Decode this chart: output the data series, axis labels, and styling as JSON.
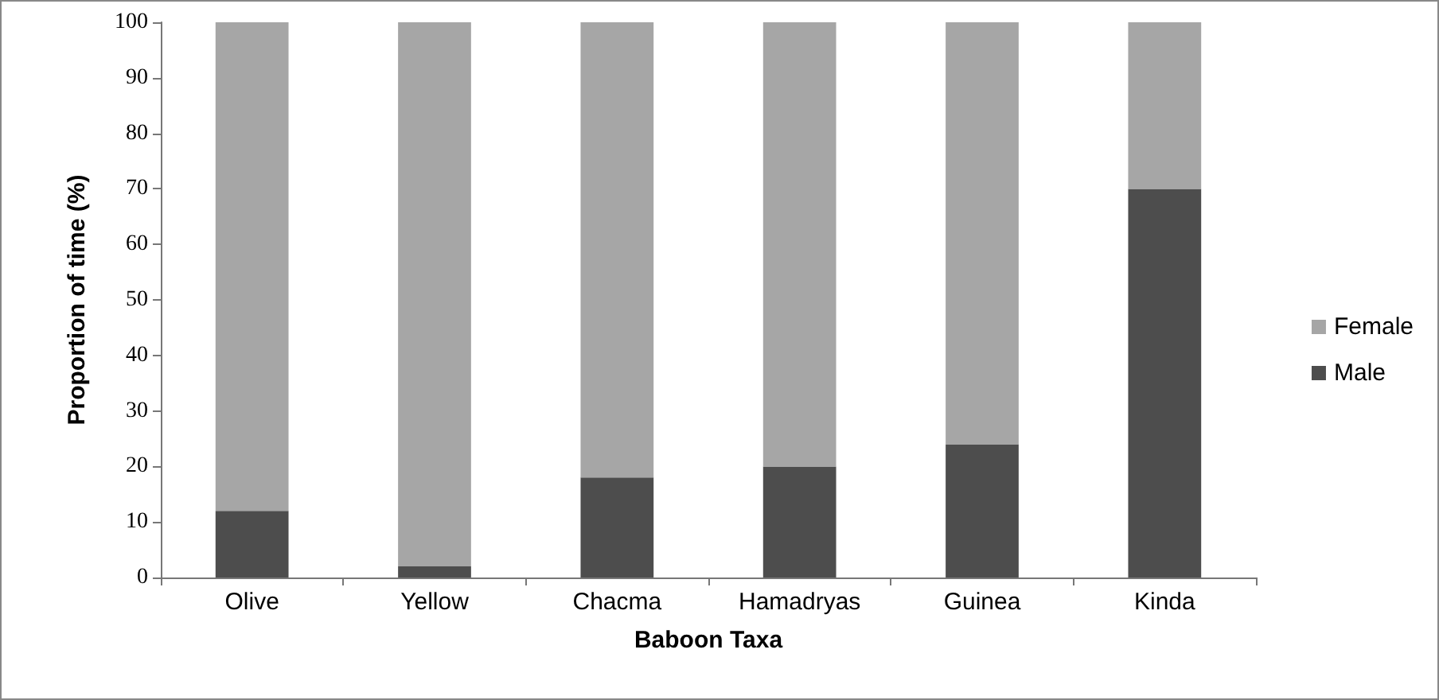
{
  "chart_data": {
    "type": "bar",
    "stacked": true,
    "xlabel": "Baboon Taxa",
    "ylabel": "Proportion of time (%)",
    "categories": [
      "Olive",
      "Yellow",
      "Chacma",
      "Hamadryas",
      "Guinea",
      "Kinda"
    ],
    "series": [
      {
        "name": "Male",
        "color": "#4d4d4d",
        "values": [
          12,
          2,
          18,
          20,
          24,
          70
        ]
      },
      {
        "name": "Female",
        "color": "#a6a6a6",
        "values": [
          88,
          98,
          82,
          80,
          76,
          30
        ]
      }
    ],
    "ylim": [
      0,
      100
    ],
    "yticks": [
      0,
      10,
      20,
      30,
      40,
      50,
      60,
      70,
      80,
      90,
      100
    ],
    "grid": false,
    "legend": "right"
  }
}
